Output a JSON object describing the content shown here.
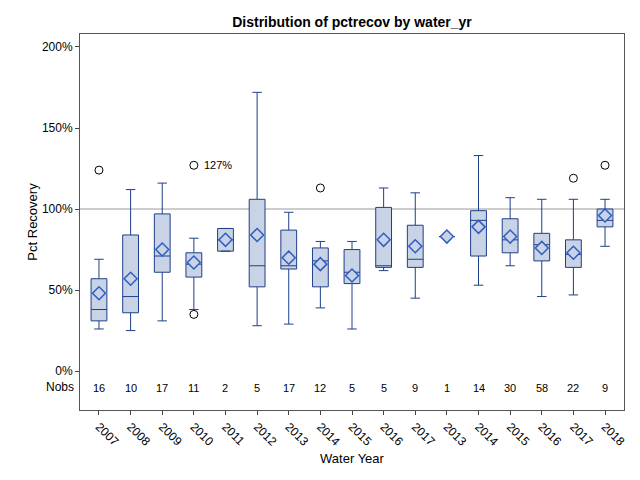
{
  "chart_data": {
    "type": "box",
    "title": "Distribution of pctrecov by water_yr",
    "x_label": "Water Year",
    "y_label": "Pct Recovery",
    "categories": [
      "2007",
      "2008",
      "2009",
      "2010",
      "2011",
      "2012",
      "2013",
      "2014",
      "2015",
      "2016",
      "2017",
      "2013",
      "2014",
      "2015",
      "2016",
      "2017",
      "2018"
    ],
    "q1": [
      31,
      36,
      61,
      58,
      74,
      52,
      63,
      52,
      54,
      64,
      64,
      83,
      71,
      73,
      68,
      64,
      89
    ],
    "median": [
      38,
      46,
      71,
      66,
      81,
      65,
      65,
      68,
      61,
      65,
      69,
      83,
      93,
      81,
      78,
      72,
      93
    ],
    "q3": [
      57,
      84,
      97,
      73,
      88,
      106,
      87,
      76,
      75,
      101,
      90,
      83,
      99,
      94,
      85,
      81,
      100
    ],
    "whisker_low": [
      26,
      25,
      31,
      38,
      74,
      28,
      29,
      39,
      26,
      62,
      45,
      83,
      53,
      65,
      46,
      47,
      77
    ],
    "whisker_high": [
      69,
      112,
      116,
      82,
      88,
      172,
      98,
      80,
      80,
      113,
      110,
      83,
      133,
      107,
      106,
      106,
      106
    ],
    "mean": [
      48,
      57,
      75,
      67,
      81,
      84,
      70,
      66,
      59,
      81,
      77,
      83,
      89,
      83,
      76,
      73,
      96
    ],
    "outliers": [
      [
        124
      ],
      [],
      [],
      [
        127,
        35
      ],
      [],
      [],
      [],
      [
        113
      ],
      [],
      [],
      [],
      [],
      [],
      [],
      [],
      [
        119
      ],
      [
        127
      ]
    ],
    "nobs_label": "Nobs",
    "nobs": [
      16,
      10,
      17,
      11,
      2,
      5,
      17,
      12,
      5,
      5,
      9,
      1,
      14,
      30,
      58,
      22,
      9
    ],
    "annotations": [
      {
        "text": "127%",
        "x": 3,
        "y": 127
      }
    ],
    "reference_line": 100,
    "ylim": [
      -24,
      208
    ],
    "yticks": [
      {
        "value": 0,
        "label": "0%"
      },
      {
        "value": 50,
        "label": "50%"
      },
      {
        "value": 100,
        "label": "100%"
      },
      {
        "value": 150,
        "label": "150%"
      },
      {
        "value": 200,
        "label": "200%"
      }
    ],
    "grid": false,
    "color": "#c8d3e6",
    "marker": "diamond"
  }
}
